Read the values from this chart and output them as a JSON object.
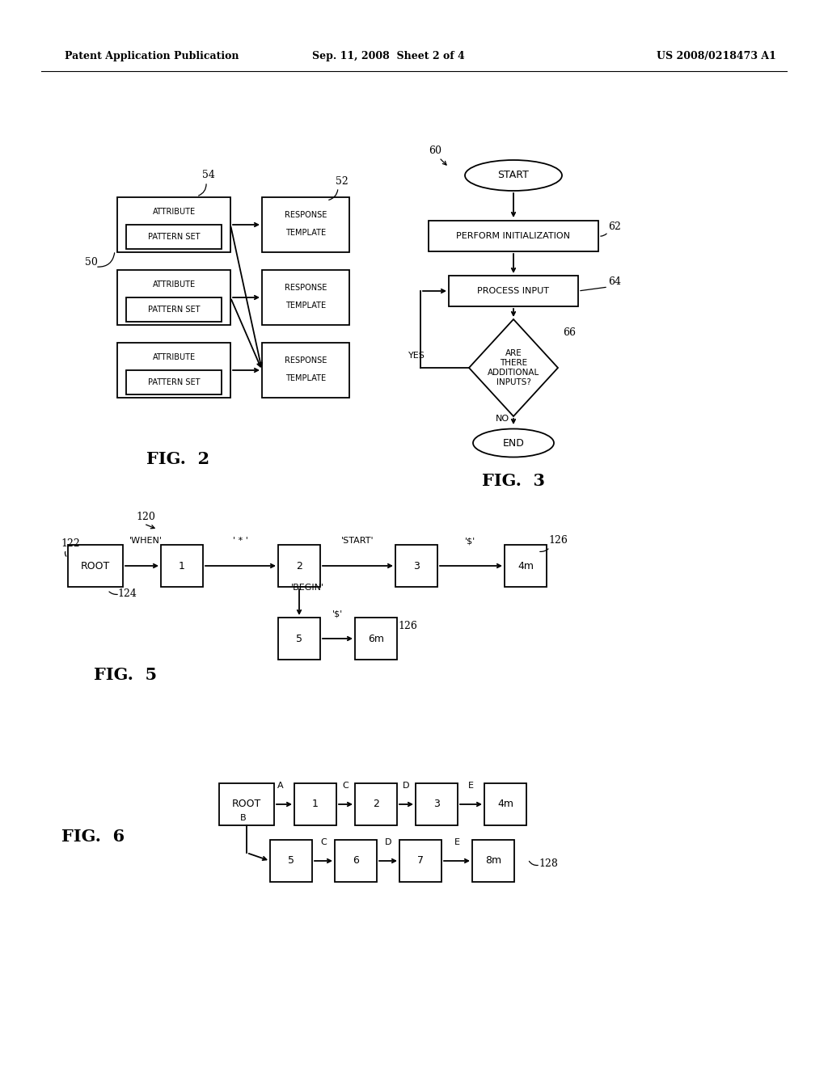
{
  "header_left": "Patent Application Publication",
  "header_mid": "Sep. 11, 2008  Sheet 2 of 4",
  "header_right": "US 2008/0218473 A1",
  "bg_color": "#ffffff",
  "text_color": "#000000"
}
